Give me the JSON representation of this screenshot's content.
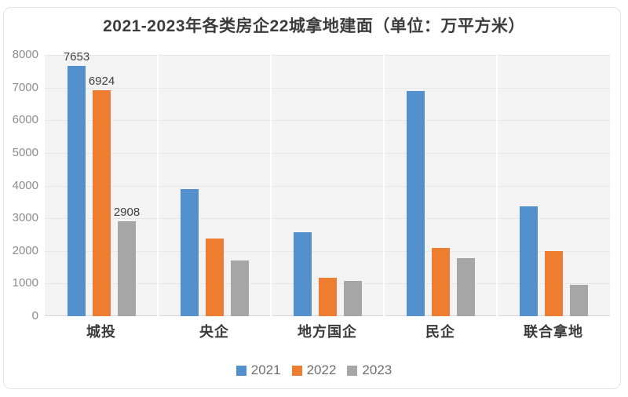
{
  "chart_data": {
    "type": "bar",
    "title": "2021-2023年各类房企22城拿地建面（单位：万平方米）",
    "categories": [
      "城投",
      "央企",
      "地方国企",
      "民企",
      "联合拿地"
    ],
    "series": [
      {
        "name": "2021",
        "color": "#5590CE",
        "values": [
          7653,
          3890,
          2570,
          6900,
          3370
        ]
      },
      {
        "name": "2022",
        "color": "#ED7D31",
        "values": [
          6924,
          2380,
          1180,
          2080,
          2000
        ]
      },
      {
        "name": "2023",
        "color": "#A6A6A6",
        "values": [
          2908,
          1710,
          1070,
          1780,
          960
        ]
      }
    ],
    "ylim": [
      0,
      8000
    ],
    "ytick_step": 1000,
    "ytick_labels": [
      "0",
      "1000",
      "2000",
      "3000",
      "4000",
      "5000",
      "6000",
      "7000",
      "8000"
    ],
    "data_labels": {
      "category_index": 0,
      "values": [
        "7653",
        "6924",
        "2908"
      ]
    },
    "legend": {
      "position": "bottom",
      "entries": [
        "2021",
        "2022",
        "2023"
      ]
    },
    "grid": true
  },
  "colors": {
    "card_border": "#e4e4e4",
    "plot_bg": "#f3f3f4",
    "gridline": "#e7e7e8",
    "separator": "#ffffff",
    "axis_line": "#d8d8d8",
    "title_text": "#3c3c3c",
    "tick_text": "#8c8c8c",
    "category_text": "#3a3a3a",
    "value_label_text": "#3f3f3f",
    "legend_text": "#6e6e6e"
  }
}
